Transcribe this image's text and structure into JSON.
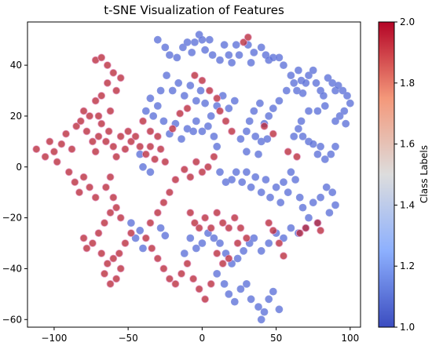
{
  "chart_data": {
    "type": "scatter",
    "title": "t-SNE Visualization of Features",
    "xlabel": "",
    "ylabel": "",
    "xlim": [
      -118,
      107
    ],
    "ylim": [
      -63,
      57
    ],
    "xticks": [
      -100,
      -50,
      0,
      50,
      100
    ],
    "yticks": [
      -60,
      -40,
      -20,
      0,
      20,
      40
    ],
    "xtick_labels": [
      "−100",
      "−50",
      "0",
      "50",
      "100"
    ],
    "ytick_labels": [
      "−60",
      "−40",
      "−20",
      "0",
      "20",
      "40"
    ],
    "grid": false,
    "colorbar": {
      "label": "Class Labels",
      "range": [
        1.0,
        2.0
      ],
      "ticks": [
        1.0,
        1.2,
        1.4,
        1.6,
        1.8,
        2.0
      ],
      "tick_labels": [
        "1.0",
        "1.2",
        "1.4",
        "1.6",
        "1.8",
        "2.0"
      ],
      "colormap": "coolwarm",
      "low_color": "#3b4cc0",
      "high_color": "#b40426"
    },
    "series": [
      {
        "class": 1,
        "color": "#5b6fd8",
        "points": [
          [
            -30,
            50
          ],
          [
            -25,
            47
          ],
          [
            -22,
            44
          ],
          [
            -17,
            43
          ],
          [
            -13,
            47
          ],
          [
            -10,
            49
          ],
          [
            -7,
            45
          ],
          [
            -5,
            49
          ],
          [
            -2,
            52
          ],
          [
            0,
            50
          ],
          [
            2,
            46
          ],
          [
            5,
            50
          ],
          [
            7,
            44
          ],
          [
            12,
            42
          ],
          [
            15,
            48
          ],
          [
            18,
            44
          ],
          [
            20,
            41
          ],
          [
            23,
            48
          ],
          [
            25,
            44
          ],
          [
            31,
            48
          ],
          [
            33,
            41
          ],
          [
            35,
            45
          ],
          [
            40,
            47
          ],
          [
            43,
            44
          ],
          [
            45,
            42
          ],
          [
            48,
            43
          ],
          [
            52,
            43
          ],
          [
            55,
            40
          ],
          [
            60,
            36
          ],
          [
            62,
            33
          ],
          [
            65,
            38
          ],
          [
            67,
            34
          ],
          [
            64,
            30
          ],
          [
            68,
            29
          ],
          [
            70,
            33
          ],
          [
            72,
            36
          ],
          [
            75,
            38
          ],
          [
            77,
            33
          ],
          [
            80,
            30
          ],
          [
            82,
            28
          ],
          [
            85,
            35
          ],
          [
            88,
            33
          ],
          [
            90,
            30
          ],
          [
            92,
            32
          ],
          [
            95,
            30
          ],
          [
            98,
            28
          ],
          [
            100,
            25
          ],
          [
            96,
            22
          ],
          [
            93,
            20
          ],
          [
            90,
            18
          ],
          [
            97,
            17
          ],
          [
            83,
            24
          ],
          [
            78,
            22
          ],
          [
            72,
            22
          ],
          [
            67,
            18
          ],
          [
            65,
            15
          ],
          [
            62,
            12
          ],
          [
            68,
            12
          ],
          [
            72,
            10
          ],
          [
            75,
            9
          ],
          [
            78,
            5
          ],
          [
            80,
            8
          ],
          [
            83,
            3
          ],
          [
            87,
            5
          ],
          [
            90,
            8
          ],
          [
            57,
            30
          ],
          [
            52,
            26
          ],
          [
            48,
            23
          ],
          [
            45,
            20
          ],
          [
            42,
            17
          ],
          [
            39,
            25
          ],
          [
            35,
            22
          ],
          [
            32,
            18
          ],
          [
            30,
            14
          ],
          [
            36,
            12
          ],
          [
            40,
            10
          ],
          [
            44,
            11
          ],
          [
            38,
            5
          ],
          [
            30,
            6
          ],
          [
            26,
            11
          ],
          [
            22,
            26
          ],
          [
            18,
            23
          ],
          [
            14,
            28
          ],
          [
            10,
            24
          ],
          [
            6,
            20
          ],
          [
            2,
            25
          ],
          [
            -1,
            30
          ],
          [
            -4,
            26
          ],
          [
            -8,
            32
          ],
          [
            -12,
            28
          ],
          [
            -16,
            33
          ],
          [
            -20,
            30
          ],
          [
            -24,
            36
          ],
          [
            -28,
            30
          ],
          [
            -30,
            24
          ],
          [
            -35,
            27
          ],
          [
            -38,
            22
          ],
          [
            -33,
            20
          ],
          [
            -26,
            18
          ],
          [
            -22,
            13
          ],
          [
            -18,
            17
          ],
          [
            -14,
            11
          ],
          [
            -10,
            15
          ],
          [
            -6,
            14
          ],
          [
            -4,
            18
          ],
          [
            0,
            14
          ],
          [
            4,
            16
          ],
          [
            8,
            12
          ],
          [
            10,
            8
          ],
          [
            -42,
            5
          ],
          [
            -40,
            0
          ],
          [
            -35,
            -2
          ],
          [
            12,
            -2
          ],
          [
            16,
            -6
          ],
          [
            20,
            -5
          ],
          [
            23,
            -2
          ],
          [
            27,
            -6
          ],
          [
            30,
            -2
          ],
          [
            33,
            -8
          ],
          [
            36,
            -4
          ],
          [
            40,
            -10
          ],
          [
            43,
            -5
          ],
          [
            46,
            -12
          ],
          [
            50,
            -8
          ],
          [
            53,
            -14
          ],
          [
            55,
            -6
          ],
          [
            58,
            -10
          ],
          [
            60,
            -2
          ],
          [
            63,
            -5
          ],
          [
            66,
            -12
          ],
          [
            68,
            -16
          ],
          [
            72,
            -20
          ],
          [
            75,
            -14
          ],
          [
            80,
            -12
          ],
          [
            84,
            -8
          ],
          [
            88,
            -10
          ],
          [
            90,
            -15
          ],
          [
            86,
            -18
          ],
          [
            78,
            -22
          ],
          [
            70,
            -24
          ],
          [
            65,
            -26
          ],
          [
            60,
            -24
          ],
          [
            55,
            -28
          ],
          [
            50,
            -26
          ],
          [
            45,
            -30
          ],
          [
            40,
            -33
          ],
          [
            35,
            -28
          ],
          [
            32,
            -30
          ],
          [
            28,
            -33
          ],
          [
            24,
            -36
          ],
          [
            20,
            -38
          ],
          [
            16,
            -34
          ],
          [
            12,
            -30
          ],
          [
            8,
            -28
          ],
          [
            4,
            -26
          ],
          [
            0,
            -30
          ],
          [
            -4,
            -32
          ],
          [
            -8,
            -28
          ],
          [
            -12,
            -34
          ],
          [
            10,
            -42
          ],
          [
            15,
            -46
          ],
          [
            18,
            -50
          ],
          [
            22,
            -53
          ],
          [
            26,
            -48
          ],
          [
            30,
            -46
          ],
          [
            33,
            -52
          ],
          [
            38,
            -55
          ],
          [
            42,
            -57
          ],
          [
            45,
            -52
          ],
          [
            48,
            -49
          ],
          [
            52,
            -56
          ],
          [
            40,
            -60
          ],
          [
            -28,
            -24
          ],
          [
            -25,
            -27
          ],
          [
            -45,
            -28
          ],
          [
            -42,
            -25
          ],
          [
            -48,
            -22
          ],
          [
            -40,
            -32
          ]
        ]
      },
      {
        "class": 2,
        "color": "#b82a3a",
        "points": [
          [
            -112,
            7
          ],
          [
            -106,
            4
          ],
          [
            -103,
            10
          ],
          [
            -100,
            6
          ],
          [
            -98,
            2
          ],
          [
            -95,
            9
          ],
          [
            -92,
            13
          ],
          [
            -88,
            7
          ],
          [
            -85,
            16
          ],
          [
            -82,
            18
          ],
          [
            -80,
            22
          ],
          [
            -78,
            14
          ],
          [
            -76,
            20
          ],
          [
            -74,
            10
          ],
          [
            -72,
            6
          ],
          [
            -70,
            12
          ],
          [
            -68,
            17
          ],
          [
            -65,
            10
          ],
          [
            -63,
            14
          ],
          [
            -60,
            8
          ],
          [
            -58,
            4
          ],
          [
            -55,
            12
          ],
          [
            -52,
            7
          ],
          [
            -50,
            14
          ],
          [
            -48,
            10
          ],
          [
            -45,
            12
          ],
          [
            -42,
            8
          ],
          [
            -38,
            5
          ],
          [
            -35,
            8
          ],
          [
            -32,
            3
          ],
          [
            -28,
            7
          ],
          [
            -25,
            2
          ],
          [
            -90,
            -2
          ],
          [
            -86,
            -6
          ],
          [
            -83,
            -10
          ],
          [
            -80,
            -4
          ],
          [
            -76,
            -8
          ],
          [
            -72,
            -12
          ],
          [
            -65,
            -8
          ],
          [
            -62,
            -4
          ],
          [
            -60,
            -12
          ],
          [
            -58,
            -16
          ],
          [
            -55,
            -20
          ],
          [
            -62,
            -18
          ],
          [
            -66,
            -22
          ],
          [
            -70,
            -26
          ],
          [
            -74,
            -30
          ],
          [
            -78,
            -32
          ],
          [
            -80,
            -28
          ],
          [
            -68,
            -34
          ],
          [
            -64,
            -38
          ],
          [
            -60,
            -36
          ],
          [
            -56,
            -34
          ],
          [
            -52,
            -30
          ],
          [
            -48,
            -26
          ],
          [
            -55,
            -40
          ],
          [
            -58,
            -44
          ],
          [
            -62,
            -46
          ],
          [
            -66,
            -42
          ],
          [
            -72,
            42
          ],
          [
            -68,
            43
          ],
          [
            -64,
            40
          ],
          [
            -60,
            37
          ],
          [
            -64,
            33
          ],
          [
            -68,
            28
          ],
          [
            -72,
            26
          ],
          [
            -70,
            20
          ],
          [
            -62,
            22
          ],
          [
            -58,
            30
          ],
          [
            -55,
            35
          ],
          [
            -40,
            18
          ],
          [
            -35,
            14
          ],
          [
            -30,
            12
          ],
          [
            -20,
            15
          ],
          [
            -15,
            21
          ],
          [
            -10,
            23
          ],
          [
            -5,
            36
          ],
          [
            0,
            34
          ],
          [
            5,
            30
          ],
          [
            10,
            27
          ],
          [
            12,
            22
          ],
          [
            16,
            18
          ],
          [
            20,
            14
          ],
          [
            8,
            4
          ],
          [
            4,
            0
          ],
          [
            0,
            -2
          ],
          [
            -4,
            2
          ],
          [
            -8,
            -4
          ],
          [
            -12,
            -1
          ],
          [
            -18,
            -5
          ],
          [
            -22,
            -10
          ],
          [
            -26,
            -14
          ],
          [
            -30,
            -18
          ],
          [
            -35,
            -22
          ],
          [
            -38,
            -28
          ],
          [
            -34,
            -32
          ],
          [
            -30,
            -36
          ],
          [
            -26,
            -40
          ],
          [
            -22,
            -44
          ],
          [
            -18,
            -46
          ],
          [
            -14,
            -42
          ],
          [
            -10,
            -38
          ],
          [
            -6,
            -44
          ],
          [
            -2,
            -48
          ],
          [
            2,
            -52
          ],
          [
            6,
            -46
          ],
          [
            -8,
            -18
          ],
          [
            -5,
            -22
          ],
          [
            -2,
            -24
          ],
          [
            2,
            -20
          ],
          [
            6,
            -24
          ],
          [
            10,
            -18
          ],
          [
            14,
            -22
          ],
          [
            18,
            -24
          ],
          [
            22,
            -20
          ],
          [
            26,
            -24
          ],
          [
            30,
            -28
          ],
          [
            24,
            -30
          ],
          [
            18,
            -36
          ],
          [
            14,
            -38
          ],
          [
            10,
            -34
          ],
          [
            28,
            49
          ],
          [
            31,
            51
          ],
          [
            42,
            16
          ],
          [
            48,
            13
          ],
          [
            58,
            6
          ],
          [
            64,
            4
          ],
          [
            66,
            -26
          ],
          [
            70,
            -24
          ],
          [
            78,
            -22
          ],
          [
            80,
            -25
          ],
          [
            45,
            -22
          ],
          [
            48,
            -25
          ],
          [
            52,
            -30
          ],
          [
            55,
            -35
          ]
        ]
      }
    ]
  }
}
